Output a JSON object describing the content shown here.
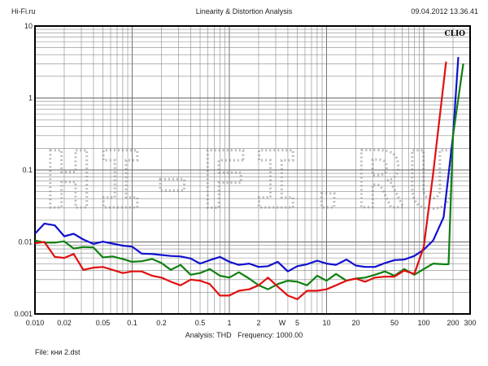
{
  "header": {
    "left": "Hi-Fi.ru",
    "title": "Linearity & Distortion Analysis",
    "datetime": "09.04.2012 13.36.41"
  },
  "footer": {
    "analysis": "Analysis: THD   Frequency: 1000.00",
    "file": "File: кни 2.dst"
  },
  "chart_data": {
    "type": "line",
    "title": "Linearity & Distortion Analysis",
    "brand_label": "CLIO",
    "watermark": "HI-FI.RU",
    "xscale": "log",
    "yscale": "log",
    "xlim": [
      0.01,
      300
    ],
    "ylim": [
      0.001,
      10
    ],
    "grid": true,
    "x_ticks": [
      {
        "v": 0.01,
        "t": "0.010"
      },
      {
        "v": 0.02,
        "t": "0.02"
      },
      {
        "v": 0.05,
        "t": "0.05"
      },
      {
        "v": 0.1,
        "t": "0.1"
      },
      {
        "v": 0.2,
        "t": "0.2"
      },
      {
        "v": 0.5,
        "t": "0.5"
      },
      {
        "v": 1,
        "t": "1"
      },
      {
        "v": 2,
        "t": "2"
      },
      {
        "v": 3.5,
        "t": "W"
      },
      {
        "v": 5,
        "t": "5"
      },
      {
        "v": 10,
        "t": "10"
      },
      {
        "v": 20,
        "t": "20"
      },
      {
        "v": 50,
        "t": "50"
      },
      {
        "v": 100,
        "t": "100"
      },
      {
        "v": 200,
        "t": "200"
      },
      {
        "v": 300,
        "t": "300"
      }
    ],
    "y_ticks": [
      {
        "v": 10,
        "t": "10"
      },
      {
        "v": 1,
        "t": "1"
      },
      {
        "v": 0.1,
        "t": "0.1"
      },
      {
        "v": 0.01,
        "t": "0.01"
      },
      {
        "v": 0.001,
        "t": "0.001"
      }
    ],
    "series": [
      {
        "name": "blue",
        "color": "#1010d0",
        "x": [
          0.01,
          0.0125,
          0.016,
          0.02,
          0.025,
          0.0315,
          0.04,
          0.05,
          0.063,
          0.08,
          0.1,
          0.125,
          0.16,
          0.2,
          0.25,
          0.315,
          0.4,
          0.5,
          0.63,
          0.8,
          1,
          1.25,
          1.6,
          2,
          2.5,
          3.15,
          4,
          5,
          6.3,
          8,
          10,
          12.5,
          16,
          20,
          25,
          31.5,
          40,
          50,
          63,
          80,
          100,
          125,
          160,
          200,
          227
        ],
        "y": [
          0.013,
          0.018,
          0.017,
          0.012,
          0.013,
          0.0108,
          0.0094,
          0.0101,
          0.0095,
          0.0089,
          0.0086,
          0.0069,
          0.0068,
          0.0066,
          0.0064,
          0.0063,
          0.0059,
          0.005,
          0.0056,
          0.0062,
          0.0053,
          0.0048,
          0.005,
          0.0045,
          0.0046,
          0.0053,
          0.0039,
          0.0046,
          0.0049,
          0.0055,
          0.005,
          0.0048,
          0.0057,
          0.0047,
          0.0045,
          0.0045,
          0.0051,
          0.0056,
          0.0057,
          0.0064,
          0.0078,
          0.0105,
          0.022,
          0.3,
          3.7
        ]
      },
      {
        "name": "green",
        "color": "#108010",
        "x": [
          0.01,
          0.0125,
          0.016,
          0.02,
          0.025,
          0.0315,
          0.04,
          0.05,
          0.063,
          0.08,
          0.1,
          0.125,
          0.16,
          0.2,
          0.25,
          0.315,
          0.4,
          0.5,
          0.63,
          0.8,
          1,
          1.25,
          1.6,
          2,
          2.5,
          3.15,
          4,
          5,
          6.3,
          8,
          10,
          12.5,
          16,
          20,
          25,
          31.5,
          40,
          50,
          63,
          80,
          100,
          125,
          160,
          180,
          200,
          255
        ],
        "y": [
          0.0105,
          0.0098,
          0.0098,
          0.0102,
          0.0081,
          0.0085,
          0.0084,
          0.0061,
          0.0063,
          0.0058,
          0.0053,
          0.0054,
          0.0058,
          0.0051,
          0.0041,
          0.0048,
          0.0035,
          0.0037,
          0.0042,
          0.0034,
          0.0032,
          0.0038,
          0.0031,
          0.0025,
          0.0022,
          0.0026,
          0.0029,
          0.0028,
          0.0025,
          0.0034,
          0.0029,
          0.0036,
          0.0029,
          0.0031,
          0.0032,
          0.0035,
          0.0039,
          0.0034,
          0.0042,
          0.0035,
          0.0042,
          0.005,
          0.0049,
          0.0049,
          0.3,
          3.0
        ]
      },
      {
        "name": "red",
        "color": "#e01010",
        "x": [
          0.01,
          0.0125,
          0.016,
          0.02,
          0.025,
          0.0315,
          0.04,
          0.05,
          0.063,
          0.08,
          0.1,
          0.125,
          0.16,
          0.2,
          0.25,
          0.315,
          0.4,
          0.5,
          0.63,
          0.8,
          1,
          1.25,
          1.6,
          2,
          2.5,
          3.15,
          4,
          5,
          6.3,
          8,
          10,
          12.5,
          16,
          20,
          25,
          31.5,
          40,
          50,
          63,
          80,
          100,
          125,
          170
        ],
        "y": [
          0.0096,
          0.01,
          0.0062,
          0.006,
          0.0068,
          0.0041,
          0.0044,
          0.0045,
          0.0041,
          0.0037,
          0.0039,
          0.0039,
          0.0034,
          0.0032,
          0.0028,
          0.0025,
          0.003,
          0.0029,
          0.0026,
          0.0018,
          0.0018,
          0.0021,
          0.0022,
          0.0025,
          0.0032,
          0.0024,
          0.0018,
          0.0016,
          0.0021,
          0.0021,
          0.0022,
          0.0025,
          0.0029,
          0.0031,
          0.0028,
          0.0032,
          0.0033,
          0.0033,
          0.004,
          0.0036,
          0.0085,
          0.09,
          3.2
        ]
      }
    ]
  }
}
